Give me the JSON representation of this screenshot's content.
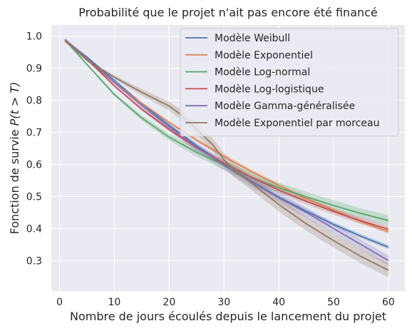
{
  "chart_data": {
    "type": "line",
    "title": "Probabilité que le projet n'ait pas encore été financé",
    "xlabel": "Nombre de jours écoulés depuis le lancement du projet",
    "ylabel_prefix": "Fonction de survie ",
    "ylabel_math": "P(t > T)",
    "xlim": [
      -1.5,
      63
    ],
    "ylim": [
      0.205,
      1.035
    ],
    "xticks": [
      0,
      10,
      20,
      30,
      40,
      50,
      60
    ],
    "yticks": [
      0.3,
      0.4,
      0.5,
      0.6,
      0.7,
      0.8,
      0.9,
      1.0
    ],
    "xtick_labels": [
      "0",
      "10",
      "20",
      "30",
      "40",
      "50",
      "60"
    ],
    "ytick_labels": [
      "0.3",
      "0.4",
      "0.5",
      "0.6",
      "0.7",
      "0.8",
      "0.9",
      "1.0"
    ],
    "grid": true,
    "legend_position": "top-right",
    "background_color": "#EAEAF2",
    "series": [
      {
        "name": "Modèle Weibull",
        "color": "#4C72B0",
        "x": [
          1,
          5,
          10,
          15,
          20,
          25,
          30,
          35,
          40,
          45,
          50,
          55,
          60
        ],
        "y": [
          0.988,
          0.935,
          0.862,
          0.79,
          0.722,
          0.658,
          0.6,
          0.547,
          0.498,
          0.454,
          0.413,
          0.376,
          0.342
        ],
        "band": 0.007
      },
      {
        "name": "Modèle Exponentiel",
        "color": "#DD8452",
        "x": [
          1,
          5,
          10,
          15,
          20,
          25,
          30,
          35,
          40,
          45,
          50,
          55,
          60
        ],
        "y": [
          0.984,
          0.925,
          0.855,
          0.791,
          0.731,
          0.676,
          0.625,
          0.578,
          0.534,
          0.494,
          0.457,
          0.422,
          0.39
        ],
        "band": 0.007
      },
      {
        "name": "Modèle Log-normal",
        "color": "#55A868",
        "x": [
          1,
          5,
          10,
          15,
          20,
          25,
          30,
          35,
          40,
          45,
          50,
          55,
          60
        ],
        "y": [
          0.988,
          0.912,
          0.818,
          0.745,
          0.685,
          0.638,
          0.598,
          0.56,
          0.527,
          0.499,
          0.472,
          0.447,
          0.425
        ],
        "band": 0.016
      },
      {
        "name": "Modèle Log-logistique",
        "color": "#C44E52",
        "x": [
          1,
          5,
          10,
          15,
          20,
          25,
          30,
          35,
          40,
          45,
          50,
          55,
          60
        ],
        "y": [
          0.99,
          0.928,
          0.845,
          0.772,
          0.709,
          0.652,
          0.603,
          0.56,
          0.52,
          0.485,
          0.453,
          0.424,
          0.398
        ],
        "band": 0.01
      },
      {
        "name": "Modèle Gamma-généralisée",
        "color": "#8172B3",
        "x": [
          1,
          5,
          10,
          15,
          20,
          25,
          30,
          35,
          40,
          45,
          50,
          55,
          60
        ],
        "y": [
          0.99,
          0.932,
          0.855,
          0.784,
          0.716,
          0.654,
          0.597,
          0.545,
          0.496,
          0.45,
          0.4,
          0.35,
          0.3
        ],
        "band": 0.016
      },
      {
        "name": "Modèle Exponentiel par morceau",
        "color": "#937860",
        "x": [
          1,
          5,
          10,
          15,
          20,
          22,
          25,
          28,
          30,
          32,
          35,
          40,
          45,
          50,
          55,
          60
        ],
        "y": [
          0.987,
          0.925,
          0.872,
          0.825,
          0.782,
          0.757,
          0.71,
          0.66,
          0.615,
          0.58,
          0.542,
          0.475,
          0.415,
          0.362,
          0.313,
          0.27
        ],
        "band": 0.022
      }
    ]
  }
}
